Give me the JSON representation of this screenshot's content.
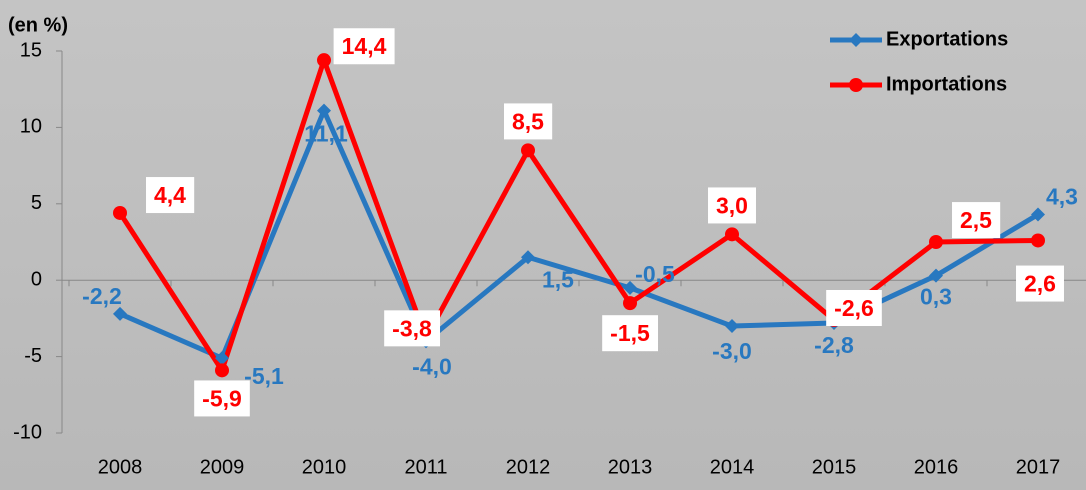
{
  "chart_data": {
    "type": "line",
    "y_label": "(en %)",
    "categories": [
      "2008",
      "2009",
      "2010",
      "2011",
      "2012",
      "2013",
      "2014",
      "2015",
      "2016",
      "2017"
    ],
    "series": [
      {
        "name": "Exportations",
        "color": "#2878c0",
        "values": [
          -2.2,
          -5.1,
          11.1,
          -4.0,
          1.5,
          -0.5,
          -3.0,
          -2.8,
          0.3,
          4.3
        ],
        "value_labels": [
          "-2,2",
          "-5,1",
          "11,1",
          "-4,0",
          "1,5",
          "-0,5",
          "-3,0",
          "-2,8",
          "0,3",
          "4,3"
        ]
      },
      {
        "name": "Importations",
        "color": "#ff0000",
        "values": [
          4.4,
          -5.9,
          14.4,
          -3.8,
          8.5,
          -1.5,
          3.0,
          -2.6,
          2.5,
          2.6
        ],
        "value_labels": [
          "4,4",
          "-5,9",
          "14,4",
          "-3,8",
          "8,5",
          "-1,5",
          "3,0",
          "-2,6",
          "2,5",
          "2,6"
        ]
      }
    ],
    "ylim": [
      -10,
      15
    ],
    "yticks": [
      -10,
      -5,
      0,
      5,
      10,
      15
    ],
    "legend": "top-right"
  }
}
